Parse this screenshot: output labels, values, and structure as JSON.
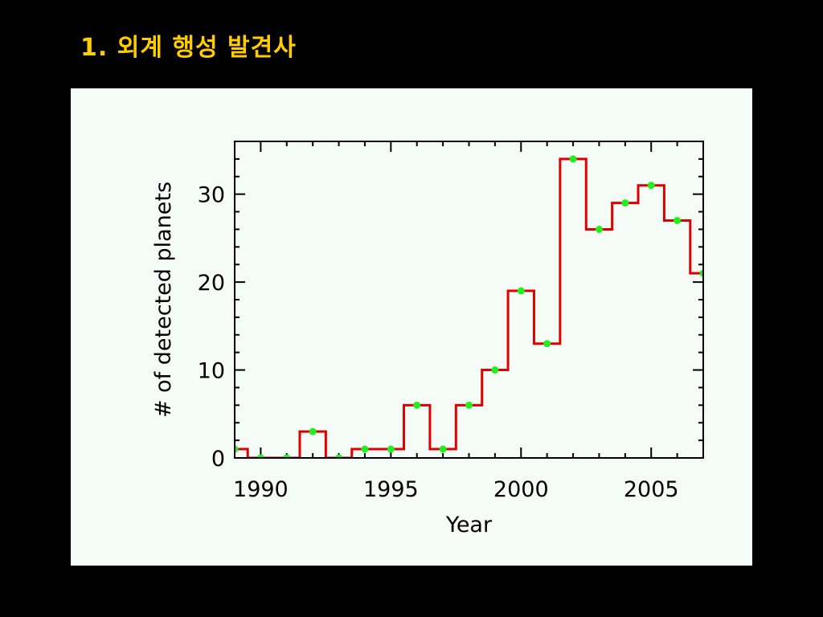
{
  "slide": {
    "title": "1.  외계 행성 발견사"
  },
  "colors": {
    "background": "#000000",
    "title": "#ffcc00",
    "panel": "#f5fbf6",
    "step_line": "#e00000",
    "markers": "#22ee22",
    "axes": "#000000"
  },
  "chart_data": {
    "type": "line",
    "title": "",
    "xlabel": "Year",
    "ylabel": "# of detected planets",
    "xlim": [
      1989,
      2007
    ],
    "ylim": [
      0,
      36
    ],
    "xticks": [
      1990,
      1995,
      2000,
      2005
    ],
    "yticks": [
      0,
      10,
      20,
      30
    ],
    "grid": false,
    "legend": "none",
    "step": "mid",
    "series": [
      {
        "x": [
          1989,
          1990,
          1991,
          1992,
          1993,
          1994,
          1995,
          1996,
          1997,
          1998,
          1999,
          2000,
          2001,
          2002,
          2003,
          2004,
          2005,
          2006,
          2007
        ],
        "values": [
          1,
          0,
          0,
          3,
          0,
          1,
          1,
          6,
          1,
          6,
          10,
          19,
          13,
          34,
          26,
          29,
          31,
          27,
          21
        ]
      }
    ]
  }
}
